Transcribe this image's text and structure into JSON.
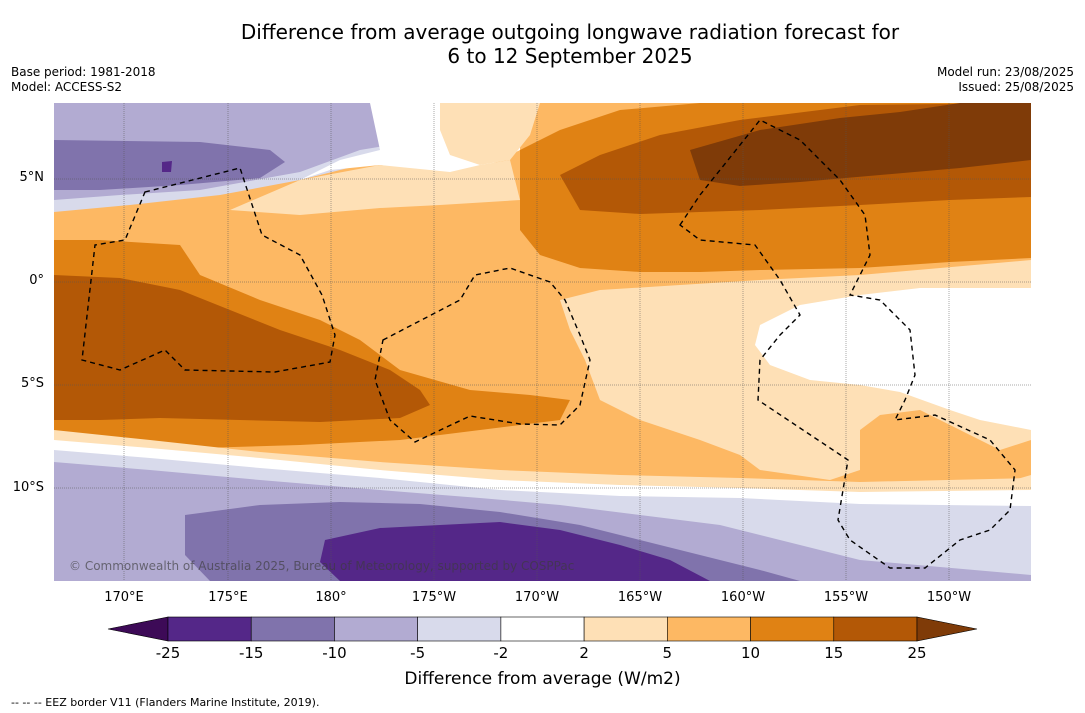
{
  "title": {
    "line1": "Difference from average outgoing longwave radiation forecast for",
    "line2": "6 to 12 September 2025"
  },
  "meta_left": {
    "base_period": "Base period: 1981-2018",
    "model": "Model: ACCESS-S2"
  },
  "meta_right": {
    "model_run": "Model run: 23/08/2025",
    "issued": "Issued: 25/08/2025"
  },
  "lat_labels": [
    "5°N",
    "0°",
    "5°S",
    "10°S"
  ],
  "lon_labels": [
    "170°E",
    "175°E",
    "180°",
    "175°W",
    "170°W",
    "165°W",
    "160°W",
    "155°W",
    "150°W"
  ],
  "colorbar": {
    "ticks": [
      "-25",
      "-15",
      "-10",
      "-5",
      "-2",
      "2",
      "5",
      "10",
      "15",
      "25"
    ],
    "colors": [
      "#3d0a57",
      "#542788",
      "#8073ac",
      "#b2abd2",
      "#d8daeb",
      "#ffffff",
      "#fee0b6",
      "#fdb863",
      "#e08214",
      "#b35806",
      "#7f3b08"
    ],
    "label": "Difference from average (W/m2)"
  },
  "credit": "© Commonwealth of Australia 2025, Bureau of Meteorology, supported by COSPPac",
  "footer": "-- -- -- EEZ border V11 (Flanders Marine Institute, 2019)."
}
